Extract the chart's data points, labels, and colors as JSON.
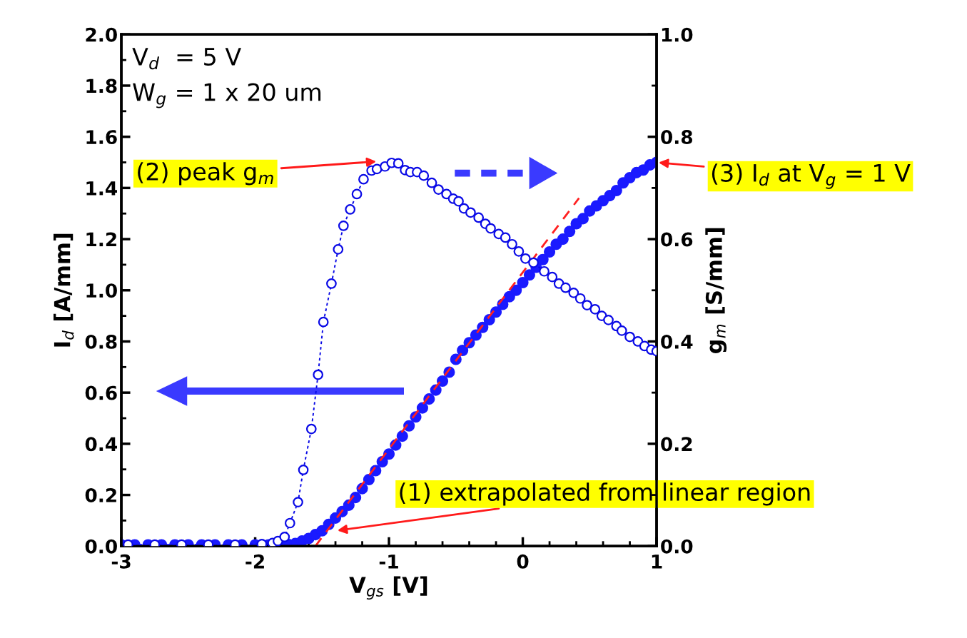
{
  "chart_data": {
    "type": "scatter",
    "xlabel": "V$_{gs}$ [V]",
    "ylabel": "I$_{d}$ [A/mm]",
    "y2label": "g$_{m}$ [S/mm]",
    "xlim": [
      -3,
      1
    ],
    "xticks": [
      -3,
      -2,
      -1,
      0,
      1
    ],
    "ylim": [
      0,
      2.0
    ],
    "yticks": [
      {
        "value": 0,
        "label": "0.0"
      },
      {
        "value": 0.2,
        "label": "0.2"
      },
      {
        "value": 0.4,
        "label": "0.4"
      },
      {
        "value": 0.6,
        "label": "0.6"
      },
      {
        "value": 0.8,
        "label": "0.8"
      },
      {
        "value": 1.0,
        "label": "1.0"
      },
      {
        "value": 1.2,
        "label": "1.2"
      },
      {
        "value": 1.4,
        "label": "1.4"
      },
      {
        "value": 1.6,
        "label": "1.6"
      },
      {
        "value": 1.8,
        "label": "1.8"
      },
      {
        "value": 2.0,
        "label": "2.0"
      }
    ],
    "y2lim": [
      0,
      1.0
    ],
    "y2ticks": [
      {
        "value": 0,
        "label": "0.0"
      },
      {
        "value": 0.2,
        "label": "0.2"
      },
      {
        "value": 0.4,
        "label": "0.4"
      },
      {
        "value": 0.6,
        "label": "0.6"
      },
      {
        "value": 0.8,
        "label": "0.8"
      },
      {
        "value": 1.0,
        "label": "1.0"
      }
    ],
    "grid": false,
    "legend": false,
    "series": [
      {
        "color": "#1a1aff",
        "marker": "circle",
        "line_style": "none",
        "x": [
          -3.0,
          -2.9,
          -2.8,
          -2.7,
          -2.6,
          -2.5,
          -2.4,
          -2.3,
          -2.2,
          -2.1,
          -2.0,
          -1.9,
          -1.8,
          -1.75,
          -1.7,
          -1.65,
          -1.6,
          -1.55,
          -1.5,
          -1.45,
          -1.4,
          -1.35,
          -1.3,
          -1.25,
          -1.2,
          -1.15,
          -1.1,
          -1.05,
          -1.0,
          -0.95,
          -0.9,
          -0.85,
          -0.8,
          -0.75,
          -0.7,
          -0.65,
          -0.6,
          -0.55,
          -0.5,
          -0.45,
          -0.4,
          -0.35,
          -0.3,
          -0.25,
          -0.2,
          -0.15,
          -0.1,
          -0.05,
          0.0,
          0.05,
          0.1,
          0.15,
          0.2,
          0.25,
          0.3,
          0.35,
          0.4,
          0.45,
          0.5,
          0.55,
          0.6,
          0.65,
          0.7,
          0.75,
          0.8,
          0.85,
          0.9,
          0.95,
          1.0
        ],
        "values": [
          0.005,
          0.005,
          0.005,
          0.005,
          0.005,
          0.005,
          0.005,
          0.005,
          0.005,
          0.005,
          0.005,
          0.005,
          0.005,
          0.006,
          0.01,
          0.02,
          0.03,
          0.045,
          0.06,
          0.085,
          0.11,
          0.135,
          0.16,
          0.19,
          0.225,
          0.26,
          0.295,
          0.33,
          0.36,
          0.395,
          0.43,
          0.47,
          0.505,
          0.54,
          0.575,
          0.61,
          0.645,
          0.68,
          0.73,
          0.765,
          0.795,
          0.825,
          0.855,
          0.885,
          0.915,
          0.945,
          0.975,
          1.0,
          1.03,
          1.06,
          1.09,
          1.12,
          1.15,
          1.18,
          1.2,
          1.23,
          1.26,
          1.28,
          1.31,
          1.33,
          1.35,
          1.37,
          1.39,
          1.42,
          1.44,
          1.46,
          1.47,
          1.49,
          1.5
        ]
      },
      {
        "type": "line",
        "axis": "y2",
        "color": "#0a0ae6",
        "marker": "circle",
        "line_style": "dotted",
        "x": [
          -2.95,
          -2.75,
          -2.55,
          -2.35,
          -2.15,
          -1.95,
          -1.87,
          -1.83,
          -1.78,
          -1.74,
          -1.68,
          -1.64,
          -1.58,
          -1.53,
          -1.49,
          -1.43,
          -1.38,
          -1.34,
          -1.29,
          -1.24,
          -1.19,
          -1.13,
          -1.09,
          -1.03,
          -0.98,
          -0.93,
          -0.88,
          -0.84,
          -0.79,
          -0.74,
          -0.68,
          -0.63,
          -0.57,
          -0.52,
          -0.48,
          -0.44,
          -0.39,
          -0.33,
          -0.28,
          -0.24,
          -0.18,
          -0.13,
          -0.08,
          -0.03,
          0.02,
          0.08,
          0.16,
          0.22,
          0.27,
          0.32,
          0.38,
          0.43,
          0.48,
          0.54,
          0.59,
          0.64,
          0.7,
          0.74,
          0.8,
          0.86,
          0.91,
          0.96,
          1.0
        ],
        "values": [
          0.003,
          0.003,
          0.003,
          0.003,
          0.003,
          0.004,
          0.006,
          0.01,
          0.018,
          0.045,
          0.086,
          0.149,
          0.229,
          0.335,
          0.438,
          0.513,
          0.58,
          0.626,
          0.658,
          0.688,
          0.717,
          0.734,
          0.737,
          0.742,
          0.749,
          0.748,
          0.735,
          0.731,
          0.731,
          0.724,
          0.71,
          0.697,
          0.688,
          0.679,
          0.674,
          0.66,
          0.652,
          0.642,
          0.63,
          0.621,
          0.61,
          0.603,
          0.59,
          0.576,
          0.562,
          0.554,
          0.537,
          0.526,
          0.513,
          0.505,
          0.495,
          0.484,
          0.471,
          0.463,
          0.45,
          0.442,
          0.43,
          0.421,
          0.409,
          0.4,
          0.391,
          0.384,
          0.381
        ]
      },
      {
        "type": "line",
        "color": "#ff2020",
        "marker": "none",
        "line_style": "dashed",
        "x": [
          -1.55,
          0.42
        ],
        "values": [
          0,
          1.36
        ]
      }
    ],
    "annotations": [
      "V$_{d}$  = 5 V",
      "W$_{g}$ = 1 x 20 um",
      "(2) peak g$_{m}$",
      {
        "text": "(3) I$_{d}$ at V$_{g}$ = 1 V",
        "x": 1,
        "y": 1.5
      },
      {
        "text": "(1) extrapolated from linear region",
        "x": -1.4,
        "y": 0.06
      }
    ]
  }
}
